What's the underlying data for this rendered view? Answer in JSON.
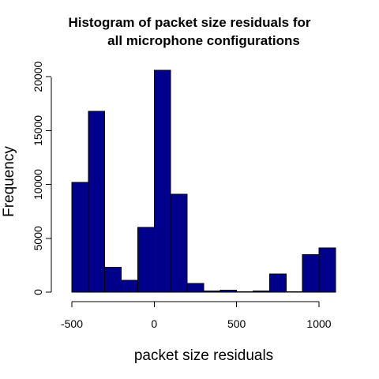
{
  "chart_data": {
    "type": "bar",
    "title_line1": "Histogram of packet size residuals for",
    "title_line2": "all microphone configurations",
    "xlabel": "packet size residuals",
    "ylabel": "Frequency",
    "bins": [
      {
        "start": -500,
        "end": -400,
        "value": 10200
      },
      {
        "start": -400,
        "end": -300,
        "value": 16800
      },
      {
        "start": -300,
        "end": -200,
        "value": 2300
      },
      {
        "start": -200,
        "end": -100,
        "value": 1100
      },
      {
        "start": -100,
        "end": 0,
        "value": 6000
      },
      {
        "start": 0,
        "end": 100,
        "value": 20600
      },
      {
        "start": 100,
        "end": 200,
        "value": 9100
      },
      {
        "start": 200,
        "end": 300,
        "value": 800
      },
      {
        "start": 300,
        "end": 400,
        "value": 100
      },
      {
        "start": 400,
        "end": 500,
        "value": 200
      },
      {
        "start": 500,
        "end": 600,
        "value": 50
      },
      {
        "start": 600,
        "end": 700,
        "value": 100
      },
      {
        "start": 700,
        "end": 800,
        "value": 1700
      },
      {
        "start": 800,
        "end": 900,
        "value": 50
      },
      {
        "start": 900,
        "end": 1000,
        "value": 3500
      },
      {
        "start": 1000,
        "end": 1100,
        "value": 4100
      }
    ],
    "xticks": [
      -500,
      0,
      500,
      1000
    ],
    "xtick_labels": [
      "-500",
      "0",
      "500",
      "1000"
    ],
    "yticks": [
      0,
      5000,
      10000,
      15000,
      20000
    ],
    "ytick_labels": [
      "0",
      "5000",
      "10000",
      "15000",
      "20000"
    ],
    "xlim": [
      -500,
      1100
    ],
    "ylim": [
      0,
      20600
    ],
    "bar_color": "#00008B",
    "grid": false
  }
}
